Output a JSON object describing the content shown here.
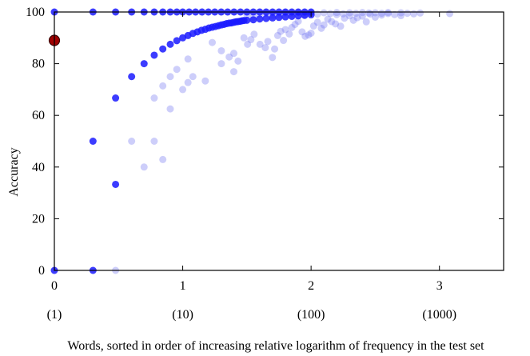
{
  "chart_data": {
    "type": "scatter",
    "title": "",
    "xlabel": "Words, sorted in order of increasing relative logarithm of frequency in the test set",
    "ylabel": "Accuracy",
    "xlim": [
      0,
      3.5
    ],
    "ylim": [
      0,
      100
    ],
    "x_ticks": [
      {
        "value": 0,
        "label": "0",
        "freq_label": "(1)"
      },
      {
        "value": 1,
        "label": "1",
        "freq_label": "(10)"
      },
      {
        "value": 2,
        "label": "2",
        "freq_label": "(100)"
      },
      {
        "value": 3,
        "label": "3",
        "freq_label": "(1000)"
      }
    ],
    "y_ticks": [
      0,
      20,
      40,
      60,
      80,
      100
    ],
    "grid": false,
    "colors": {
      "series_strong": "#1a1aff",
      "series_faint": "#6f73f2",
      "highlight": "#a00000",
      "highlight_edge": "#3a0000"
    },
    "series": [
      {
        "style": "strong",
        "points": [
          [
            0,
            0
          ],
          [
            0.301,
            0
          ],
          [
            0,
            100
          ],
          [
            0.301,
            100
          ],
          [
            0.477,
            100
          ],
          [
            0.602,
            100
          ],
          [
            0.699,
            100
          ],
          [
            0.778,
            100
          ],
          [
            0.845,
            100
          ],
          [
            0.903,
            100
          ],
          [
            0.954,
            100
          ],
          [
            1.0,
            100
          ],
          [
            1.05,
            100
          ],
          [
            1.1,
            100
          ],
          [
            1.15,
            100
          ],
          [
            1.2,
            100
          ],
          [
            1.25,
            100
          ],
          [
            1.3,
            100
          ],
          [
            1.35,
            100
          ],
          [
            1.4,
            100
          ],
          [
            1.45,
            100
          ],
          [
            1.5,
            100
          ],
          [
            1.55,
            100
          ],
          [
            1.6,
            100
          ],
          [
            1.65,
            100
          ],
          [
            1.7,
            100
          ],
          [
            1.75,
            100
          ],
          [
            1.8,
            100
          ],
          [
            1.85,
            100
          ],
          [
            1.9,
            100
          ],
          [
            1.95,
            100
          ],
          [
            2.0,
            100
          ],
          [
            0.301,
            50
          ],
          [
            0.477,
            33.3
          ],
          [
            0.477,
            66.7
          ],
          [
            0.602,
            75
          ],
          [
            0.699,
            80
          ],
          [
            0.778,
            83.3
          ],
          [
            0.845,
            85.7
          ],
          [
            0.903,
            87.5
          ],
          [
            0.954,
            88.9
          ],
          [
            1.0,
            90
          ],
          [
            1.041,
            90.9
          ],
          [
            1.079,
            91.7
          ],
          [
            1.114,
            92.3
          ],
          [
            1.146,
            92.9
          ],
          [
            1.176,
            93.3
          ],
          [
            1.204,
            93.8
          ],
          [
            1.23,
            94.1
          ],
          [
            1.255,
            94.4
          ],
          [
            1.279,
            94.7
          ],
          [
            1.301,
            95
          ],
          [
            1.322,
            95.2
          ],
          [
            1.342,
            95.5
          ],
          [
            1.362,
            95.7
          ],
          [
            1.38,
            95.8
          ],
          [
            1.398,
            96
          ],
          [
            1.415,
            96.2
          ],
          [
            1.431,
            96.3
          ],
          [
            1.447,
            96.4
          ],
          [
            1.462,
            96.6
          ],
          [
            1.477,
            96.7
          ],
          [
            1.5,
            96.8
          ],
          [
            1.55,
            97
          ],
          [
            1.6,
            97.3
          ],
          [
            1.65,
            97.5
          ],
          [
            1.7,
            97.7
          ],
          [
            1.75,
            97.9
          ],
          [
            1.8,
            98.1
          ],
          [
            1.85,
            98.3
          ],
          [
            1.9,
            98.5
          ],
          [
            1.95,
            98.7
          ],
          [
            2.0,
            98.9
          ]
        ]
      },
      {
        "style": "faint",
        "points": [
          [
            0.477,
            0
          ],
          [
            0.602,
            50
          ],
          [
            0.778,
            50
          ],
          [
            0.699,
            40
          ],
          [
            0.845,
            42.9
          ],
          [
            0.778,
            66.7
          ],
          [
            0.845,
            71.4
          ],
          [
            0.903,
            62.5
          ],
          [
            0.903,
            75
          ],
          [
            0.954,
            77.8
          ],
          [
            1.0,
            70
          ],
          [
            1.041,
            72.7
          ],
          [
            1.079,
            75
          ],
          [
            1.041,
            81.8
          ],
          [
            1.176,
            73.3
          ],
          [
            1.23,
            88.2
          ],
          [
            1.301,
            80
          ],
          [
            1.301,
            85
          ],
          [
            1.362,
            82.6
          ],
          [
            1.398,
            84
          ],
          [
            1.398,
            76.9
          ],
          [
            1.431,
            81
          ],
          [
            1.477,
            90
          ],
          [
            1.505,
            87.5
          ],
          [
            1.531,
            89.3
          ],
          [
            1.556,
            91.4
          ],
          [
            1.602,
            87.5
          ],
          [
            1.643,
            86.2
          ],
          [
            1.663,
            88.6
          ],
          [
            1.699,
            82.4
          ],
          [
            1.716,
            85.7
          ],
          [
            1.74,
            90.9
          ],
          [
            1.763,
            92.5
          ],
          [
            1.785,
            89
          ],
          [
            1.8,
            93.2
          ],
          [
            1.83,
            91.5
          ],
          [
            1.85,
            94
          ],
          [
            1.875,
            95.2
          ],
          [
            1.9,
            96.4
          ],
          [
            1.93,
            92.3
          ],
          [
            1.954,
            90.6
          ],
          [
            1.98,
            91.1
          ],
          [
            2.0,
            91.8
          ],
          [
            2.02,
            94.6
          ],
          [
            2.05,
            96
          ],
          [
            2.08,
            93.7
          ],
          [
            2.1,
            95
          ],
          [
            2.13,
            97.2
          ],
          [
            2.16,
            96.3
          ],
          [
            2.19,
            95.4
          ],
          [
            2.2,
            99
          ],
          [
            2.23,
            94.5
          ],
          [
            2.26,
            97.6
          ],
          [
            2.3,
            98.5
          ],
          [
            2.33,
            96.8
          ],
          [
            2.36,
            97.8
          ],
          [
            2.4,
            98.4
          ],
          [
            2.43,
            96.2
          ],
          [
            2.46,
            99.2
          ],
          [
            2.5,
            98
          ],
          [
            2.55,
            98.8
          ],
          [
            2.6,
            99.4
          ],
          [
            2.65,
            99
          ],
          [
            2.7,
            98.6
          ],
          [
            2.75,
            99.5
          ],
          [
            2.8,
            99.3
          ],
          [
            2.85,
            99.6
          ],
          [
            3.08,
            99.4
          ],
          [
            1.5,
            99
          ],
          [
            1.55,
            98
          ],
          [
            1.6,
            99.2
          ],
          [
            1.65,
            99.5
          ],
          [
            1.7,
            98.7
          ],
          [
            1.75,
            99.1
          ],
          [
            1.8,
            99.6
          ],
          [
            1.85,
            99.3
          ],
          [
            1.9,
            99.8
          ],
          [
            1.95,
            99
          ],
          [
            2.0,
            99.6
          ],
          [
            2.05,
            99.2
          ],
          [
            2.1,
            99.7
          ],
          [
            2.15,
            99.4
          ],
          [
            2.2,
            99.8
          ],
          [
            2.25,
            99.3
          ],
          [
            2.3,
            99.7
          ],
          [
            2.35,
            99.5
          ],
          [
            2.4,
            99.8
          ],
          [
            2.45,
            99.6
          ],
          [
            2.5,
            99.7
          ],
          [
            2.55,
            99.5
          ],
          [
            2.6,
            99.8
          ],
          [
            2.7,
            99.7
          ]
        ]
      },
      {
        "style": "highlight",
        "points": [
          [
            0,
            89
          ]
        ]
      }
    ]
  }
}
